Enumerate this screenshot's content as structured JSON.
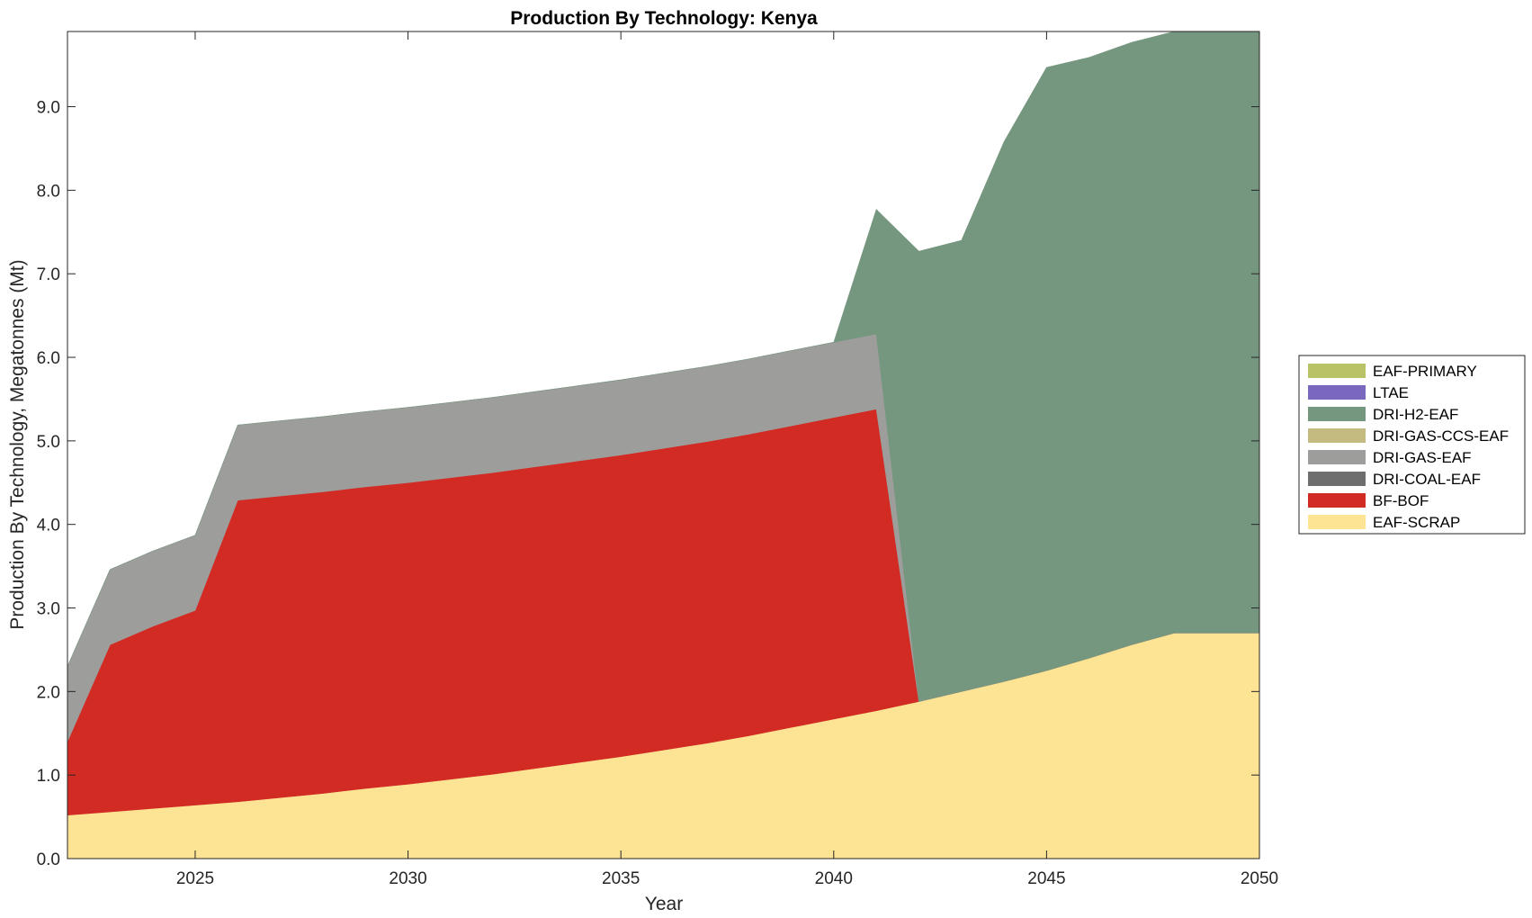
{
  "chart_data": {
    "type": "area",
    "stacked": true,
    "title": "Production By Technology: Kenya",
    "xlabel": "Year",
    "ylabel": "Production By Technology, Megatonnes (Mt)",
    "xlim": [
      2022,
      2050
    ],
    "ylim": [
      0,
      9.9
    ],
    "xticks": [
      2025,
      2030,
      2035,
      2040,
      2045,
      2050
    ],
    "yticks": [
      0,
      1,
      2,
      3,
      4,
      5,
      6,
      7,
      8,
      9
    ],
    "ytick_labels": [
      "0.0",
      "1.0",
      "2.0",
      "3.0",
      "4.0",
      "5.0",
      "6.0",
      "7.0",
      "8.0",
      "9.0"
    ],
    "grid": false,
    "legend_position": "right",
    "x": [
      2022,
      2023,
      2024,
      2025,
      2026,
      2027,
      2028,
      2029,
      2030,
      2031,
      2032,
      2033,
      2034,
      2035,
      2036,
      2037,
      2038,
      2039,
      2040,
      2041,
      2042,
      2043,
      2044,
      2045,
      2046,
      2047,
      2048,
      2049,
      2050
    ],
    "series": [
      {
        "name": "EAF-SCRAP",
        "color": "#fde394",
        "values": [
          0.52,
          0.56,
          0.6,
          0.64,
          0.68,
          0.73,
          0.78,
          0.84,
          0.89,
          0.95,
          1.01,
          1.08,
          1.15,
          1.22,
          1.3,
          1.38,
          1.47,
          1.57,
          1.67,
          1.77,
          1.88,
          2.0,
          2.12,
          2.25,
          2.4,
          2.56,
          2.7,
          2.7,
          2.7
        ]
      },
      {
        "name": "BF-BOF",
        "color": "#d22b24",
        "values": [
          0.88,
          2.0,
          2.18,
          2.33,
          3.61,
          3.61,
          3.61,
          3.61,
          3.61,
          3.61,
          3.61,
          3.61,
          3.61,
          3.61,
          3.61,
          3.61,
          3.61,
          3.61,
          3.61,
          3.61,
          0,
          0,
          0,
          0,
          0,
          0,
          0,
          0,
          0
        ]
      },
      {
        "name": "DRI-COAL-EAF",
        "color": "#6e6e6e",
        "values": [
          0,
          0,
          0,
          0,
          0,
          0,
          0,
          0,
          0,
          0,
          0,
          0,
          0,
          0,
          0,
          0,
          0,
          0,
          0,
          0,
          0,
          0,
          0,
          0,
          0,
          0,
          0,
          0,
          0
        ]
      },
      {
        "name": "DRI-GAS-EAF",
        "color": "#9d9d9c",
        "values": [
          0.9,
          0.9,
          0.9,
          0.9,
          0.9,
          0.9,
          0.9,
          0.9,
          0.9,
          0.9,
          0.9,
          0.9,
          0.9,
          0.9,
          0.9,
          0.9,
          0.9,
          0.9,
          0.9,
          0.9,
          0,
          0,
          0,
          0,
          0,
          0,
          0,
          0,
          0
        ]
      },
      {
        "name": "DRI-GAS-CCS-EAF",
        "color": "#c4bb80",
        "values": [
          0,
          0,
          0,
          0,
          0,
          0,
          0,
          0,
          0,
          0,
          0,
          0,
          0,
          0,
          0,
          0,
          0,
          0,
          0,
          0,
          0,
          0,
          0,
          0,
          0,
          0,
          0,
          0,
          0
        ]
      },
      {
        "name": "DRI-H2-EAF",
        "color": "#76977f",
        "values": [
          0,
          0,
          0,
          0,
          0,
          0,
          0,
          0,
          0,
          0,
          0,
          0,
          0,
          0,
          0,
          0,
          0,
          0,
          0,
          1.49,
          5.39,
          5.4,
          6.46,
          7.22,
          7.19,
          7.21,
          7.2,
          7.2,
          7.2
        ]
      },
      {
        "name": "LTAE",
        "color": "#7a68be",
        "values": [
          0,
          0,
          0,
          0,
          0,
          0,
          0,
          0,
          0,
          0,
          0,
          0,
          0,
          0,
          0,
          0,
          0,
          0,
          0,
          0,
          0,
          0,
          0,
          0,
          0,
          0,
          0,
          0,
          0
        ]
      },
      {
        "name": "EAF-PRIMARY",
        "color": "#b9c266",
        "values": [
          0,
          0,
          0,
          0,
          0,
          0,
          0,
          0,
          0,
          0,
          0,
          0,
          0,
          0,
          0,
          0,
          0,
          0,
          0,
          0,
          0,
          0,
          0,
          0,
          0,
          0,
          0,
          0,
          0
        ]
      }
    ],
    "legend_order": [
      "EAF-PRIMARY",
      "LTAE",
      "DRI-H2-EAF",
      "DRI-GAS-CCS-EAF",
      "DRI-GAS-EAF",
      "DRI-COAL-EAF",
      "BF-BOF",
      "EAF-SCRAP"
    ]
  }
}
